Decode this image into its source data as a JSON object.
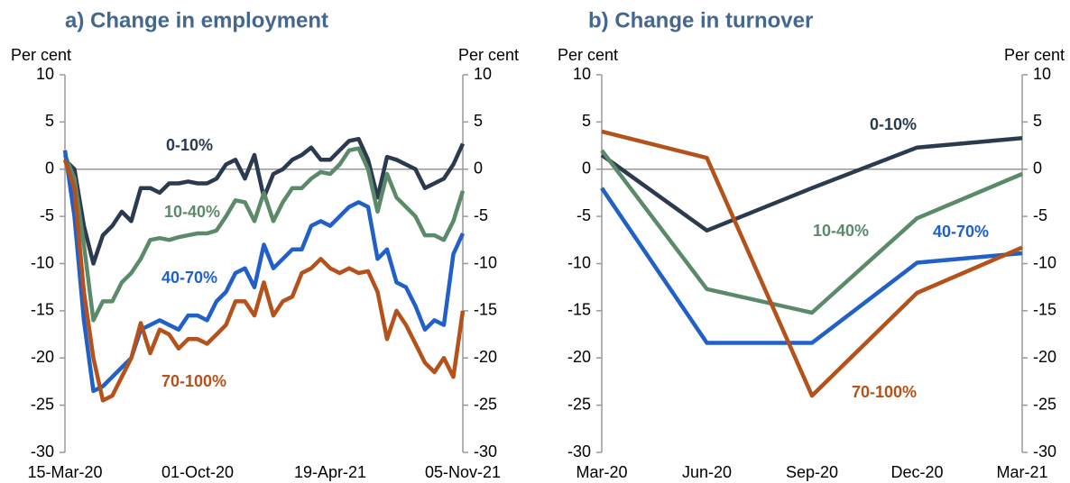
{
  "chart_data": [
    {
      "type": "line",
      "subtitle": "a)   Change in employment",
      "ylabel": "Per cent",
      "y2label": "Per cent",
      "categories": [
        "15-Mar-20",
        null,
        null,
        null,
        null,
        null,
        null,
        null,
        null,
        null,
        null,
        null,
        null,
        null,
        "01-Oct-20",
        null,
        null,
        null,
        null,
        null,
        null,
        null,
        null,
        null,
        null,
        null,
        null,
        null,
        "19-Apr-21",
        null,
        null,
        null,
        null,
        null,
        null,
        null,
        null,
        null,
        null,
        null,
        null,
        null,
        "05-Nov-21"
      ],
      "ylim": [
        -30,
        10
      ],
      "yticks": [
        10,
        5,
        0,
        -5,
        -10,
        -15,
        -20,
        -25,
        -30
      ],
      "y2lim": [
        -30,
        10
      ],
      "y2ticks": [
        10,
        5,
        0,
        -5,
        -10,
        -15,
        -20,
        -25,
        -30
      ],
      "series": [
        {
          "name": "0-10%",
          "color": "#2b3a4f",
          "values": [
            1,
            0,
            -6,
            -10,
            -7,
            -6,
            -4.5,
            -5.5,
            -2,
            -2,
            -2.5,
            -1.5,
            -1.5,
            -1.3,
            -1.5,
            -1.5,
            -1,
            0.5,
            1,
            -1,
            1.5,
            -3,
            -0.5,
            0,
            1,
            1.5,
            2.3,
            1,
            1,
            2,
            3,
            3.2,
            1,
            -3,
            1.3,
            1,
            0.5,
            0,
            -2,
            -1.5,
            -1,
            0.5,
            2.7
          ]
        },
        {
          "name": "10-40%",
          "color": "#5b8a6b",
          "values": [
            1.5,
            -1,
            -8,
            -16,
            -14,
            -14,
            -12,
            -11,
            -9.5,
            -7.5,
            -7.3,
            -7.5,
            -7.2,
            -7,
            -6.8,
            -6.8,
            -6.5,
            -5,
            -3.3,
            -3.5,
            -5.5,
            -2.5,
            -5.5,
            -3.5,
            -2,
            -2,
            -1,
            -0.3,
            -0.5,
            0.5,
            2,
            2.2,
            0,
            -4.5,
            -0.5,
            -3,
            -4,
            -5,
            -7,
            -7,
            -7.5,
            -5.5,
            -2.3
          ]
        },
        {
          "name": "40-70%",
          "color": "#2060c8",
          "values": [
            2,
            -5,
            -16,
            -23.5,
            -23,
            -22,
            -21,
            -20,
            -17,
            -16.5,
            -16,
            -16.5,
            -17,
            -15.5,
            -15.5,
            -16,
            -14,
            -13,
            -11,
            -10.5,
            -12.5,
            -8,
            -10.5,
            -9.5,
            -8.5,
            -8.5,
            -6,
            -5.5,
            -6,
            -5,
            -4,
            -3.5,
            -4,
            -9.5,
            -8.5,
            -12,
            -12.5,
            -14.5,
            -17,
            -16,
            -16.5,
            -9,
            -6.8
          ]
        },
        {
          "name": "70-100%",
          "color": "#b5521b",
          "values": [
            1,
            -2,
            -13,
            -20,
            -24.5,
            -24,
            -22,
            -20,
            -16.3,
            -19.5,
            -17,
            -17.5,
            -19,
            -18,
            -18,
            -18.5,
            -17.5,
            -16.5,
            -14,
            -14,
            -15.5,
            -12,
            -15.5,
            -14,
            -13.5,
            -11,
            -10.5,
            -9.5,
            -10.5,
            -11,
            -10.5,
            -11,
            -10.8,
            -13,
            -18,
            -15,
            -16.5,
            -18.5,
            -20.5,
            -21.5,
            -20,
            -22,
            -15
          ]
        }
      ]
    },
    {
      "type": "line",
      "subtitle": "b)   Change in turnover",
      "ylabel": "Per cent",
      "y2label": "Per cent",
      "categories": [
        "Mar-20",
        "Jun-20",
        "Sep-20",
        "Dec-20",
        "Mar-21"
      ],
      "ylim": [
        -30,
        10
      ],
      "yticks": [
        10,
        5,
        0,
        -5,
        -10,
        -15,
        -20,
        -25,
        -30
      ],
      "y2lim": [
        -30,
        10
      ],
      "y2ticks": [
        10,
        5,
        0,
        -5,
        -10,
        -15,
        -20,
        -25,
        -30
      ],
      "series": [
        {
          "name": "0-10%",
          "color": "#2b3a4f",
          "values": [
            1.5,
            -6.5,
            -2,
            2.3,
            3.3
          ]
        },
        {
          "name": "10-40%",
          "color": "#5b8a6b",
          "values": [
            2,
            -12.7,
            -15.2,
            -5.2,
            -0.5
          ]
        },
        {
          "name": "40-70%",
          "color": "#2060c8",
          "values": [
            -2,
            -18.4,
            -18.4,
            -9.9,
            -8.9
          ]
        },
        {
          "name": "70-100%",
          "color": "#b5521b",
          "values": [
            4,
            1.2,
            -24,
            -13.1,
            -8.3
          ]
        }
      ]
    }
  ]
}
